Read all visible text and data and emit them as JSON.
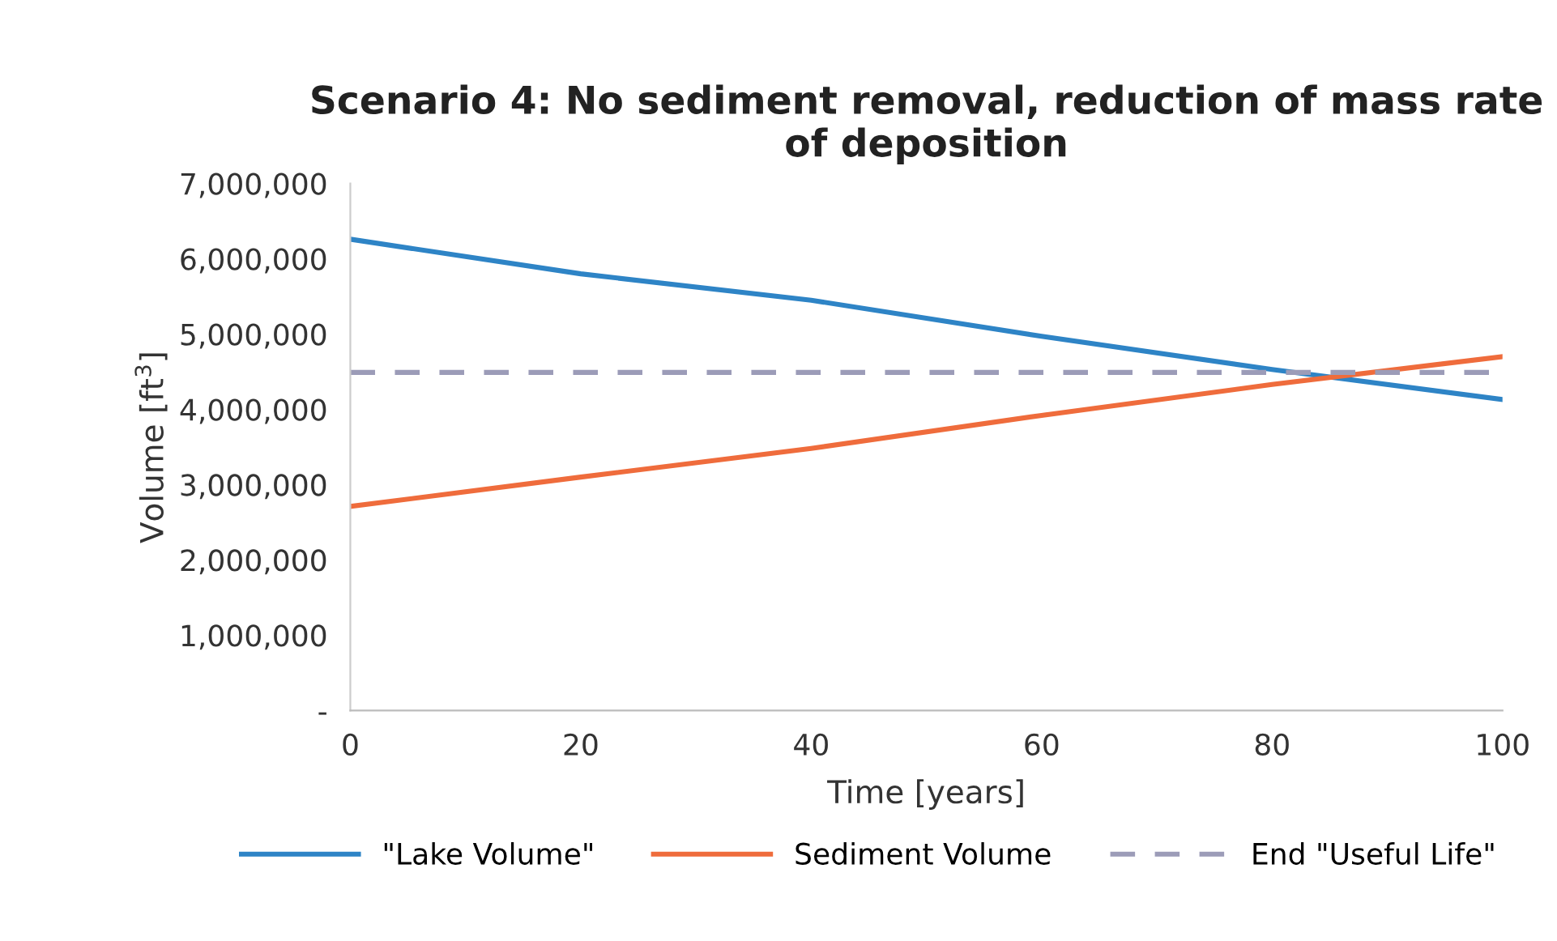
{
  "chart_data": {
    "type": "line",
    "title": "Scenario 4: No sediment removal, reduction of mass rate\nof deposition",
    "xlabel": "Time [years]",
    "ylabel": "Volume [ft$^{3}$]",
    "x": [
      0,
      20,
      40,
      60,
      80,
      100
    ],
    "series": [
      {
        "name": "\"Lake Volume\"",
        "color": "#2e84c6",
        "values": [
          6260000,
          5800000,
          5450000,
          4970000,
          4530000,
          4130000
        ]
      },
      {
        "name": "Sediment Volume",
        "color": "#ef6c3c",
        "values": [
          2710000,
          3100000,
          3480000,
          3920000,
          4330000,
          4700000
        ]
      },
      {
        "name": "End \"Useful Life\"",
        "color": "#9c9cb8",
        "line_style": "dashed",
        "values": [
          4490000,
          4490000,
          4490000,
          4490000,
          4490000,
          4490000
        ]
      }
    ],
    "xlim": [
      0,
      100
    ],
    "xticks": [
      0,
      20,
      40,
      60,
      80,
      100
    ],
    "ylim": [
      0,
      7000000
    ],
    "yticks": [
      {
        "value": 0,
        "label": "-"
      },
      {
        "value": 1000000,
        "label": "1,000,000"
      },
      {
        "value": 2000000,
        "label": "2,000,000"
      },
      {
        "value": 3000000,
        "label": "3,000,000"
      },
      {
        "value": 4000000,
        "label": "4,000,000"
      },
      {
        "value": 5000000,
        "label": "5,000,000"
      },
      {
        "value": 6000000,
        "label": "6,000,000"
      },
      {
        "value": 7000000,
        "label": "7,000,000"
      }
    ],
    "grid": false,
    "legend": "bottom",
    "marker": "none",
    "line_style": "solid"
  }
}
